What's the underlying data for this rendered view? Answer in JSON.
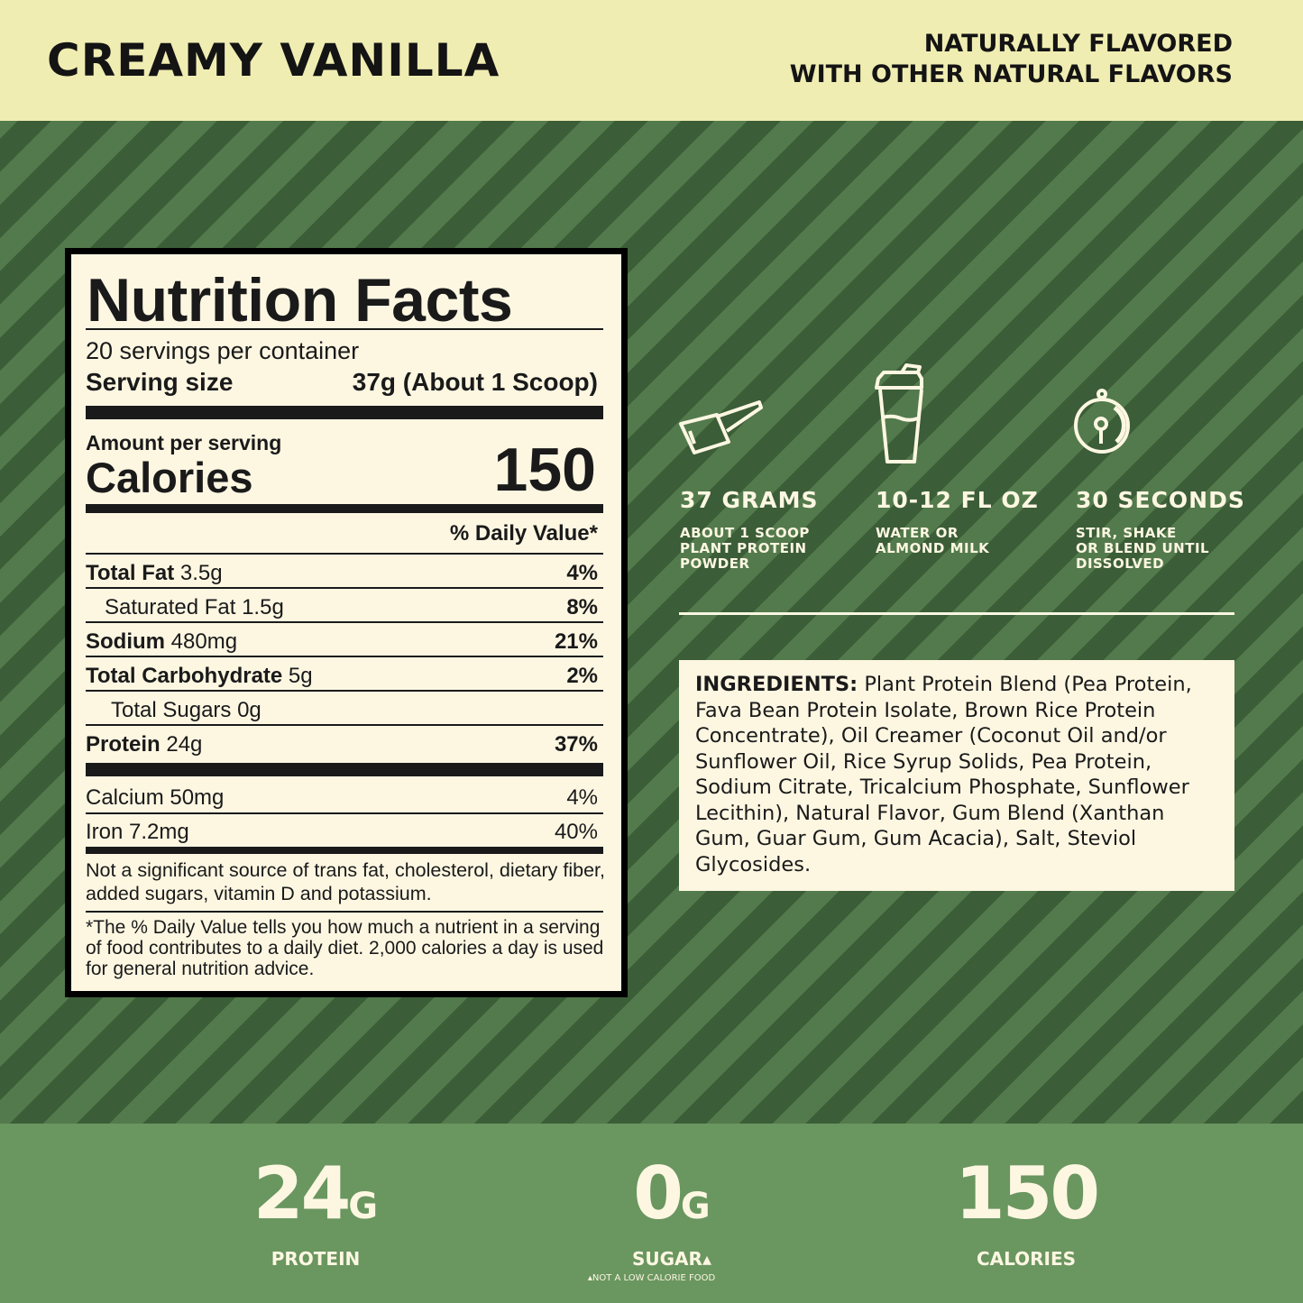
{
  "header": {
    "flavor": "CREAMY VANILLA",
    "claim_line1": "NATURALLY FLAVORED",
    "claim_line2": "WITH OTHER NATURAL FLAVORS"
  },
  "nutrition": {
    "title": "Nutrition Facts",
    "servings": "20 servings per container",
    "serving_size_label": "Serving size",
    "serving_size_value": "37g (About 1 Scoop)",
    "amount_per_serving": "Amount per serving",
    "calories_label": "Calories",
    "calories_value": "150",
    "dv_header": "% Daily Value*",
    "rows": [
      {
        "label": "Total Fat",
        "amount": "3.5g",
        "dv": "4%"
      },
      {
        "label": "Saturated Fat 1.5g",
        "amount": "",
        "dv": "8%"
      },
      {
        "label": "Sodium",
        "amount": "480mg",
        "dv": "21%"
      },
      {
        "label": "Total Carbohydrate",
        "amount": "5g",
        "dv": "2%"
      },
      {
        "label": "Total Sugars 0g",
        "amount": "",
        "dv": ""
      },
      {
        "label": "Protein",
        "amount": "24g",
        "dv": "37%"
      }
    ],
    "vitamins": [
      {
        "label": "Calcium 50mg",
        "dv": "4%"
      },
      {
        "label": "Iron 7.2mg",
        "dv": "40%"
      }
    ],
    "not_significant": "Not a significant source of trans fat, cholesterol, dietary fiber, added sugars, vitamin D and potassium.",
    "footnote": "*The % Daily Value tells you how much a nutrient in a serving of food contributes to a daily diet. 2,000 calories a day is used for general nutrition advice."
  },
  "directions": [
    {
      "icon": "scoop-icon",
      "heading": "37 GRAMS",
      "sub": [
        "ABOUT 1 SCOOP",
        "PLANT PROTEIN",
        "POWDER"
      ]
    },
    {
      "icon": "shaker-bottle-icon",
      "heading": "10-12 FL OZ",
      "sub": [
        "WATER OR",
        "ALMOND MILK"
      ]
    },
    {
      "icon": "stopwatch-icon",
      "heading": "30 SECONDS",
      "sub": [
        "STIR, SHAKE",
        "OR BLEND UNTIL",
        "DISSOLVED"
      ]
    }
  ],
  "ingredients": {
    "label": "INGREDIENTS:",
    "text": "Plant Protein Blend (Pea Protein, Fava Bean Protein Isolate, Brown Rice Protein Concentrate), Oil Creamer (Coconut Oil and/or Sunflower Oil, Rice Syrup Solids, Pea Protein, Sodium Citrate, Tricalcium Phosphate, Sunflower Lecithin), Natural Flavor, Gum Blend (Xanthan Gum, Guar Gum, Gum Acacia), Salt, Steviol Glycosides."
  },
  "stats": [
    {
      "value": "24",
      "unit": "G",
      "label": "PROTEIN"
    },
    {
      "value": "0",
      "unit": "G",
      "label": "SUGAR▴"
    },
    {
      "value": "150",
      "unit": "",
      "label": "CALORIES"
    }
  ],
  "footnote": "▴NOT A LOW CALORIE FOOD",
  "colors": {
    "header_bg": "#f0edb2",
    "stripe_dark": "#3b5d37",
    "stripe_light": "#537a4c",
    "bottom_bg": "#6a9660",
    "cream": "#fdf7e2"
  }
}
